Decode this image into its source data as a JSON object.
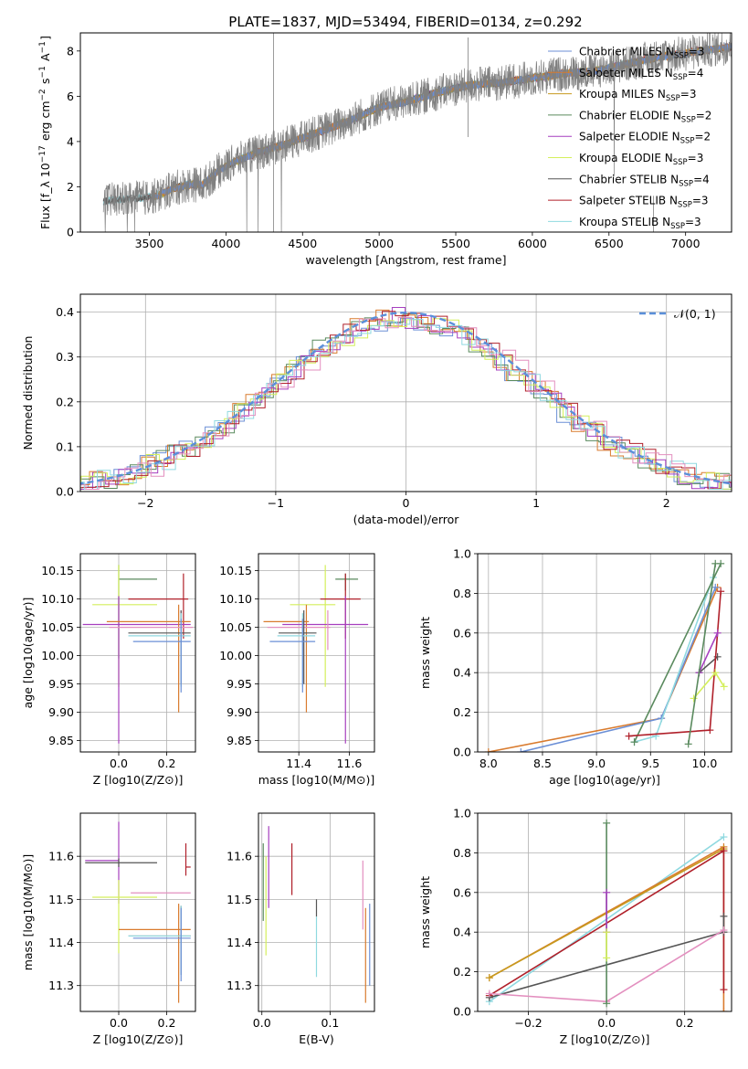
{
  "figure": {
    "title": "PLATE=1837, MJD=53494, FIBERID=0134, z=0.292",
    "colors": {
      "Chabrier MILES": "#6b8fd6",
      "Salpeter MILES": "#d97b2e",
      "Kroupa MILES": "#c79a1e",
      "Chabrier ELODIE": "#5a8a5e",
      "Salpeter ELODIE": "#a63fbf",
      "Kroupa ELODIE": "#d4ef5c",
      "Chabrier STELIB": "#555555",
      "Salpeter STELIB": "#b0202a",
      "Kroupa STELIB": "#8fd9e0",
      "pink": "#e38fbf",
      "normal": "#5b8fd9"
    }
  },
  "chart_data": [
    {
      "id": "spectrum",
      "type": "line",
      "xlabel": "wavelength [Angstrom, rest frame]",
      "ylabel": "Flux [f_λ 10^-17 erg cm^-2 s^-1 A^-1]",
      "xlim": [
        3050,
        7300
      ],
      "ylim": [
        0,
        8.8
      ],
      "xticks": [
        3500,
        4000,
        4500,
        5000,
        5500,
        6000,
        6500,
        7000
      ],
      "yticks": [
        0,
        2,
        4,
        6,
        8
      ],
      "grid": false,
      "legend_position": "upper-right",
      "legend": [
        {
          "name": "Chabrier MILES",
          "sub": "SSP",
          "n": "3"
        },
        {
          "name": "Salpeter MILES",
          "sub": "SSP",
          "n": "4"
        },
        {
          "name": "Kroupa MILES",
          "sub": "SSP",
          "n": "3"
        },
        {
          "name": "Chabrier ELODIE",
          "sub": "SSP",
          "n": "2"
        },
        {
          "name": "Salpeter ELODIE",
          "sub": "SSP",
          "n": "2"
        },
        {
          "name": "Kroupa ELODIE",
          "sub": "SSP",
          "n": "3"
        },
        {
          "name": "Chabrier STELIB",
          "sub": "SSP",
          "n": "4"
        },
        {
          "name": "Salpeter STELIB",
          "sub": "SSP",
          "n": "3"
        },
        {
          "name": "Kroupa STELIB",
          "sub": "SSP",
          "n": "3"
        }
      ],
      "continuum": {
        "x": [
          3200,
          3300,
          3450,
          3550,
          3650,
          3750,
          3850,
          3950,
          4050,
          4200,
          4400,
          4600,
          4800,
          5000,
          5200,
          5400,
          5600,
          5800,
          6000,
          6200,
          6400,
          6600,
          6800,
          7000,
          7300
        ],
        "y": [
          1.35,
          1.45,
          1.5,
          1.6,
          1.9,
          2.1,
          2.1,
          2.7,
          3.1,
          3.5,
          3.9,
          4.4,
          4.9,
          5.5,
          5.8,
          6.2,
          6.5,
          6.6,
          6.8,
          7.0,
          7.1,
          7.4,
          7.7,
          7.9,
          8.2
        ]
      },
      "data_start": 3200,
      "model_lines": [
        {
          "series": "Salpeter ELODIE",
          "x_start": 3850,
          "x_end": 6800
        },
        {
          "series": "Kroupa ELODIE",
          "x_start": 3900,
          "x_end": 6800
        },
        {
          "series": "Chabrier ELODIE",
          "x_start": 3650,
          "x_end": 6800
        },
        {
          "series": "Salpeter STELIB",
          "x_start": 3480,
          "x_end": 7300
        },
        {
          "series": "Kroupa STELIB",
          "x_start": 3200,
          "x_end": 7300
        },
        {
          "series": "Chabrier STELIB",
          "x_start": 3200,
          "x_end": 7300
        },
        {
          "series": "Kroupa MILES",
          "x_start": 3520,
          "x_end": 7300
        },
        {
          "series": "Salpeter MILES",
          "x_start": 3520,
          "x_end": 7300
        },
        {
          "series": "Chabrier MILES",
          "x_start": 3520,
          "x_end": 7300
        }
      ]
    },
    {
      "id": "residuals",
      "type": "histogram",
      "xlabel": "(data-model)/error",
      "ylabel": "Normed distribution",
      "xlim": [
        -2.5,
        2.5
      ],
      "ylim": [
        0,
        0.44
      ],
      "xticks": [
        -2,
        -1,
        0,
        1,
        2
      ],
      "yticks": [
        0.0,
        0.1,
        0.2,
        0.3,
        0.4
      ],
      "grid": true,
      "legend_position": "upper-right",
      "legend_label": "𝒩(0, 1)",
      "bin_width": 0.1,
      "series": [
        "Chabrier MILES",
        "Salpeter MILES",
        "Chabrier ELODIE",
        "Salpeter ELODIE",
        "Kroupa ELODIE",
        "Salpeter STELIB",
        "Kroupa STELIB",
        "pink"
      ]
    },
    {
      "id": "age_vs_z",
      "type": "errorbar",
      "xlabel": "Z [log10(Z/Z⊙)]",
      "ylabel": "age [log10(age/yr)]",
      "xlim": [
        -0.16,
        0.32
      ],
      "ylim": [
        9.83,
        10.18
      ],
      "xticks": [
        0.0,
        0.2
      ],
      "yticks": [
        9.85,
        9.9,
        9.95,
        10.0,
        10.05,
        10.1,
        10.15
      ],
      "grid": true,
      "points": [
        {
          "series": "Chabrier ELODIE",
          "x": 0.0,
          "xerr": [
            0.0,
            0.16
          ],
          "y": 10.135,
          "yerr": [
            0.14,
            0.025
          ]
        },
        {
          "series": "Kroupa ELODIE",
          "x": 0.0,
          "xerr": [
            0.11,
            0.16
          ],
          "y": 10.09,
          "yerr": [
            0.145,
            0.07
          ]
        },
        {
          "series": "Salpeter STELIB",
          "x": 0.27,
          "xerr": [
            0.23,
            0.02
          ],
          "y": 10.1,
          "yerr": [
            0.07,
            0.045
          ]
        },
        {
          "series": "Salpeter ELODIE",
          "x": 0.0,
          "xerr": [
            0.15,
            0.3
          ],
          "y": 10.055,
          "yerr": [
            0.21,
            0.05
          ]
        },
        {
          "series": "Salpeter MILES",
          "x": 0.25,
          "xerr": [
            0.3,
            0.05
          ],
          "y": 10.06,
          "yerr": [
            0.16,
            0.03
          ]
        },
        {
          "series": "pink",
          "x": 0.26,
          "xerr": [
            0.3,
            0.05
          ],
          "y": 10.05,
          "yerr": [
            0.04,
            0.03
          ]
        },
        {
          "series": "Chabrier STELIB",
          "x": 0.26,
          "xerr": [
            0.22,
            0.04
          ],
          "y": 10.04,
          "yerr": [
            0.09,
            0.04
          ]
        },
        {
          "series": "Kroupa STELIB",
          "x": 0.26,
          "xerr": [
            0.22,
            0.04
          ],
          "y": 10.035,
          "yerr": [
            0.09,
            0.04
          ]
        },
        {
          "series": "Chabrier MILES",
          "x": 0.26,
          "xerr": [
            0.2,
            0.04
          ],
          "y": 10.025,
          "yerr": [
            0.09,
            0.04
          ]
        }
      ]
    },
    {
      "id": "age_vs_mass",
      "type": "errorbar",
      "xlabel": "mass [log10(M/M⊙)]",
      "ylabel": "",
      "xlim": [
        11.24,
        11.7
      ],
      "ylim": [
        9.83,
        10.18
      ],
      "xticks": [
        11.4,
        11.6
      ],
      "yticks": [
        9.85,
        9.9,
        9.95,
        10.0,
        10.05,
        10.1,
        10.15
      ],
      "grid": true,
      "points": [
        {
          "series": "Chabrier ELODIE",
          "x": 11.585,
          "xerr": [
            0.04,
            0.05
          ],
          "y": 10.135,
          "yerr": [
            0.02,
            0.01
          ]
        },
        {
          "series": "Kroupa ELODIE",
          "x": 11.505,
          "xerr": [
            0.14,
            0.04
          ],
          "y": 10.09,
          "yerr": [
            0.145,
            0.07
          ]
        },
        {
          "series": "Salpeter STELIB",
          "x": 11.585,
          "xerr": [
            0.1,
            0.06
          ],
          "y": 10.1,
          "yerr": [
            0.07,
            0.045
          ]
        },
        {
          "series": "Salpeter ELODIE",
          "x": 11.585,
          "xerr": [
            0.25,
            0.09
          ],
          "y": 10.055,
          "yerr": [
            0.21,
            0.05
          ]
        },
        {
          "series": "Salpeter MILES",
          "x": 11.43,
          "xerr": [
            0.17,
            0.01
          ],
          "y": 10.06,
          "yerr": [
            0.16,
            0.03
          ]
        },
        {
          "series": "pink",
          "x": 11.515,
          "xerr": [
            0.24,
            0.01
          ],
          "y": 10.05,
          "yerr": [
            0.04,
            0.03
          ]
        },
        {
          "series": "Chabrier STELIB",
          "x": 11.42,
          "xerr": [
            0.1,
            0.05
          ],
          "y": 10.04,
          "yerr": [
            0.09,
            0.04
          ]
        },
        {
          "series": "Kroupa STELIB",
          "x": 11.415,
          "xerr": [
            0.1,
            0.05
          ],
          "y": 10.035,
          "yerr": [
            0.09,
            0.04
          ]
        },
        {
          "series": "Chabrier MILES",
          "x": 11.415,
          "xerr": [
            0.13,
            0.05
          ],
          "y": 10.025,
          "yerr": [
            0.09,
            0.04
          ]
        }
      ]
    },
    {
      "id": "massweight_vs_age",
      "type": "line",
      "xlabel": "age [log10(age/yr)]",
      "ylabel": "mass weight",
      "xlim": [
        7.9,
        10.25
      ],
      "ylim": [
        0.0,
        1.0
      ],
      "xticks": [
        8.0,
        8.5,
        9.0,
        9.5,
        10.0
      ],
      "yticks": [
        0.0,
        0.2,
        0.4,
        0.6,
        0.8,
        1.0
      ],
      "grid": true,
      "series": [
        {
          "name": "Salpeter MILES",
          "x": [
            8.0,
            9.6,
            10.12
          ],
          "y": [
            0.0,
            0.17,
            0.83
          ]
        },
        {
          "name": "Chabrier MILES",
          "x": [
            8.3,
            9.6,
            10.1
          ],
          "y": [
            0.0,
            0.17,
            0.83
          ]
        },
        {
          "name": "Kroupa STELIB",
          "x": [
            9.35,
            9.55,
            10.08
          ],
          "y": [
            0.05,
            0.08,
            0.88
          ]
        },
        {
          "name": "Chabrier ELODIE",
          "x": [
            9.35,
            10.15
          ],
          "y": [
            0.05,
            0.95
          ]
        },
        {
          "name": "Chabrier STELIB",
          "x": [
            9.95,
            10.12
          ],
          "y": [
            0.4,
            0.48
          ]
        },
        {
          "name": "Salpeter STELIB",
          "x": [
            9.3,
            10.05,
            10.15
          ],
          "y": [
            0.08,
            0.11,
            0.81
          ]
        },
        {
          "name": "Salpeter ELODIE",
          "x": [
            9.95,
            10.12
          ],
          "y": [
            0.4,
            0.6
          ]
        },
        {
          "name": "Kroupa ELODIE",
          "x": [
            9.9,
            10.1,
            10.18
          ],
          "y": [
            0.27,
            0.4,
            0.33
          ]
        },
        {
          "name": "Chabrier ELODIE",
          "x": [
            9.85,
            10.1
          ],
          "y": [
            0.04,
            0.95
          ]
        }
      ]
    },
    {
      "id": "mass_vs_z",
      "type": "errorbar",
      "xlabel": "Z [log10(Z/Z⊙)]",
      "ylabel": "mass [log10(M/M⊙)]",
      "xlim": [
        -0.16,
        0.32
      ],
      "ylim": [
        11.24,
        11.7
      ],
      "xticks": [
        0.0,
        0.2
      ],
      "yticks": [
        11.3,
        11.4,
        11.5,
        11.6
      ],
      "grid": true,
      "points": [
        {
          "series": "Salpeter ELODIE",
          "x": 0.0,
          "xerr": [
            0.14,
            0.0
          ],
          "y": 11.59,
          "yerr": [
            0.1,
            0.09
          ]
        },
        {
          "series": "Chabrier STELIB",
          "x": 0.0,
          "xerr": [
            0.14,
            0.16
          ],
          "y": 11.585,
          "yerr": [
            0.01,
            0.01
          ]
        },
        {
          "series": "Salpeter STELIB",
          "x": 0.28,
          "xerr": [
            0.0,
            0.02
          ],
          "y": 11.575,
          "yerr": [
            0.02,
            0.055
          ]
        },
        {
          "series": "pink",
          "x": 0.05,
          "xerr": [
            0.0,
            0.25
          ],
          "y": 11.515,
          "yerr": [
            0.0,
            0.0
          ]
        },
        {
          "series": "Kroupa ELODIE",
          "x": 0.0,
          "xerr": [
            0.11,
            0.16
          ],
          "y": 11.505,
          "yerr": [
            0.13,
            0.04
          ]
        },
        {
          "series": "Salpeter MILES",
          "x": 0.25,
          "xerr": [
            0.25,
            0.05
          ],
          "y": 11.43,
          "yerr": [
            0.17,
            0.06
          ]
        },
        {
          "series": "Chabrier STELIB",
          "x": 0.26,
          "xerr": [
            0.22,
            0.04
          ],
          "y": 11.415,
          "yerr": [
            0.09,
            0.07
          ]
        },
        {
          "series": "Kroupa STELIB",
          "x": 0.26,
          "xerr": [
            0.22,
            0.04
          ],
          "y": 11.415,
          "yerr": [
            0.09,
            0.07
          ]
        },
        {
          "series": "Chabrier MILES",
          "x": 0.26,
          "xerr": [
            0.2,
            0.04
          ],
          "y": 11.41,
          "yerr": [
            0.1,
            0.07
          ]
        }
      ]
    },
    {
      "id": "mass_vs_ebv",
      "type": "errorbar",
      "xlabel": "E(B-V)",
      "ylabel": "",
      "xlim": [
        -0.005,
        0.165
      ],
      "ylim": [
        11.24,
        11.7
      ],
      "xticks": [
        0.0,
        0.1
      ],
      "yticks": [
        11.3,
        11.4,
        11.5,
        11.6
      ],
      "grid": true,
      "points": [
        {
          "series": "Chabrier ELODIE",
          "x": 0.002,
          "yrange": [
            11.45,
            11.63
          ]
        },
        {
          "series": "Kroupa ELODIE",
          "x": 0.006,
          "yrange": [
            11.37,
            11.6
          ]
        },
        {
          "series": "Salpeter ELODIE",
          "x": 0.01,
          "yrange": [
            11.48,
            11.67
          ]
        },
        {
          "series": "Salpeter STELIB",
          "x": 0.044,
          "yrange": [
            11.51,
            11.63
          ]
        },
        {
          "series": "Chabrier STELIB",
          "x": 0.08,
          "yrange": [
            11.46,
            11.5
          ]
        },
        {
          "series": "Kroupa STELIB",
          "x": 0.08,
          "yrange": [
            11.32,
            11.46
          ]
        },
        {
          "series": "pink",
          "x": 0.148,
          "yrange": [
            11.43,
            11.59
          ]
        },
        {
          "series": "Salpeter MILES",
          "x": 0.152,
          "yrange": [
            11.26,
            11.48
          ]
        },
        {
          "series": "Chabrier MILES",
          "x": 0.158,
          "yrange": [
            11.3,
            11.49
          ]
        }
      ]
    },
    {
      "id": "massweight_vs_z",
      "type": "line",
      "xlabel": "Z [log10(Z/Z⊙)]",
      "ylabel": "mass weight",
      "xlim": [
        -0.33,
        0.32
      ],
      "ylim": [
        0.0,
        1.0
      ],
      "xticks": [
        -0.2,
        0.0,
        0.2
      ],
      "yticks": [
        0.0,
        0.2,
        0.4,
        0.6,
        0.8,
        1.0
      ],
      "grid": true,
      "series": [
        {
          "name": "Kroupa STELIB",
          "x": [
            -0.3,
            0.3
          ],
          "y": [
            0.05,
            0.88
          ]
        },
        {
          "name": "Salpeter MILES",
          "x": [
            -0.3,
            0.3,
            0.3
          ],
          "y": [
            0.17,
            0.83,
            0.0
          ]
        },
        {
          "name": "Kroupa MILES",
          "x": [
            -0.3,
            0.3
          ],
          "y": [
            0.17,
            0.82
          ]
        },
        {
          "name": "Salpeter STELIB",
          "x": [
            -0.3,
            0.3,
            0.3
          ],
          "y": [
            0.08,
            0.81,
            0.11
          ]
        },
        {
          "name": "Chabrier STELIB",
          "x": [
            -0.3,
            0.3,
            0.3
          ],
          "y": [
            0.07,
            0.4,
            0.48
          ]
        },
        {
          "name": "pink",
          "x": [
            -0.3,
            0.0,
            0.3
          ],
          "y": [
            0.09,
            0.05,
            0.41
          ]
        },
        {
          "name": "Chabrier ELODIE",
          "x": [
            0.0,
            0.0
          ],
          "y": [
            0.04,
            0.95
          ]
        },
        {
          "name": "Salpeter ELODIE",
          "x": [
            0.0,
            0.0
          ],
          "y": [
            0.4,
            0.6
          ]
        },
        {
          "name": "Kroupa ELODIE",
          "x": [
            0.0,
            0.0
          ],
          "y": [
            0.27,
            0.4
          ]
        }
      ]
    }
  ]
}
